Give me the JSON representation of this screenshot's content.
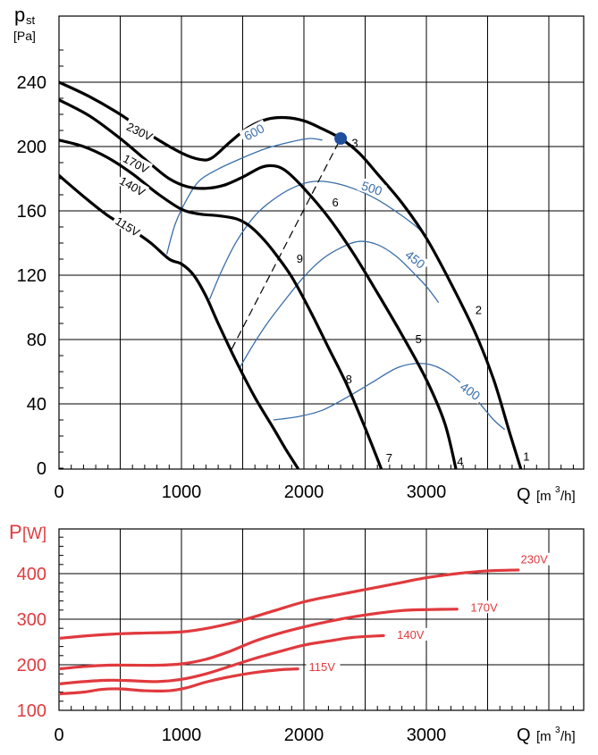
{
  "colors": {
    "black": "#000000",
    "blue": "#3a6ea8",
    "red": "#e03a3e",
    "marker": "#1f4e9c"
  },
  "chart_data": [
    {
      "type": "line",
      "title": "",
      "xlabel": "Q [m³/h]",
      "xlabel_main": "Q",
      "xlabel_unit_pre": "[m",
      "xlabel_unit_sup": "3",
      "xlabel_unit_post": "/h]",
      "ylabel_main": "p",
      "ylabel_sub": "st",
      "ylabel_unit": "[Pa]",
      "xlim": [
        0,
        4400
      ],
      "ylim": [
        0,
        240
      ],
      "x_ticks": [
        0,
        1000,
        2000,
        3000
      ],
      "x_tick_labels": [
        "0",
        "1000",
        "2000",
        "3000"
      ],
      "y_ticks": [
        0,
        40,
        80,
        120,
        160,
        200,
        240
      ],
      "y_tick_labels": [
        "0",
        "40",
        "80",
        "120",
        "160",
        "200",
        "240"
      ],
      "grid": true,
      "series": [
        {
          "name": "230V",
          "points": [
            [
              0,
              240
            ],
            [
              250,
              231
            ],
            [
              500,
              220
            ],
            [
              750,
              207
            ],
            [
              1000,
              196
            ],
            [
              1150,
              192
            ],
            [
              1250,
              193
            ],
            [
              1400,
              203
            ],
            [
              1550,
              212
            ],
            [
              1700,
              217
            ],
            [
              1850,
              218
            ],
            [
              2000,
              216
            ],
            [
              2150,
              211
            ],
            [
              2300,
              205
            ],
            [
              2450,
              196
            ],
            [
              2600,
              183
            ],
            [
              2800,
              165
            ],
            [
              3000,
              143
            ],
            [
              3200,
              115
            ],
            [
              3400,
              84
            ],
            [
              3550,
              55
            ],
            [
              3680,
              22
            ],
            [
              3770,
              0
            ]
          ]
        },
        {
          "name": "170V",
          "points": [
            [
              0,
              229
            ],
            [
              250,
              219
            ],
            [
              500,
              205
            ],
            [
              750,
              189
            ],
            [
              900,
              180
            ],
            [
              1050,
              175
            ],
            [
              1200,
              174
            ],
            [
              1350,
              176
            ],
            [
              1500,
              181
            ],
            [
              1650,
              187
            ],
            [
              1750,
              188
            ],
            [
              1850,
              185
            ],
            [
              2000,
              174
            ],
            [
              2200,
              156
            ],
            [
              2400,
              134
            ],
            [
              2600,
              109
            ],
            [
              2800,
              83
            ],
            [
              3000,
              55
            ],
            [
              3150,
              28
            ],
            [
              3240,
              0
            ]
          ]
        },
        {
          "name": "140V",
          "points": [
            [
              0,
              204
            ],
            [
              200,
              200
            ],
            [
              400,
              193
            ],
            [
              600,
              183
            ],
            [
              800,
              171
            ],
            [
              1000,
              161
            ],
            [
              1150,
              158
            ],
            [
              1300,
              157
            ],
            [
              1450,
              155
            ],
            [
              1550,
              151
            ],
            [
              1650,
              144
            ],
            [
              1750,
              135
            ],
            [
              1900,
              119
            ],
            [
              2050,
              98
            ],
            [
              2200,
              75
            ],
            [
              2350,
              52
            ],
            [
              2500,
              25
            ],
            [
              2630,
              0
            ]
          ]
        },
        {
          "name": "115V",
          "points": [
            [
              0,
              182
            ],
            [
              200,
              169
            ],
            [
              400,
              157
            ],
            [
              600,
              148
            ],
            [
              750,
              140
            ],
            [
              900,
              130
            ],
            [
              1000,
              127
            ],
            [
              1100,
              120
            ],
            [
              1200,
              107
            ],
            [
              1300,
              90
            ],
            [
              1450,
              66
            ],
            [
              1600,
              44
            ],
            [
              1750,
              25
            ],
            [
              1850,
              12
            ],
            [
              1950,
              0
            ]
          ]
        }
      ],
      "curve_labels": [
        {
          "text": "230V",
          "x": 650,
          "y": 208
        },
        {
          "text": "170V",
          "x": 620,
          "y": 188
        },
        {
          "text": "140V",
          "x": 590,
          "y": 174
        },
        {
          "text": "115V",
          "x": 550,
          "y": 149
        }
      ],
      "iso_lines": [
        {
          "label": "600",
          "points": [
            [
              880,
              133
            ],
            [
              950,
              152
            ],
            [
              1050,
              168
            ],
            [
              1150,
              179
            ],
            [
              1300,
              186
            ],
            [
              1500,
              193
            ],
            [
              1700,
              199
            ],
            [
              1900,
              203
            ],
            [
              2050,
              205
            ],
            [
              2150,
              204
            ]
          ],
          "label_pos": [
            1600,
            208
          ]
        },
        {
          "label": "500",
          "points": [
            [
              1230,
              105
            ],
            [
              1330,
              123
            ],
            [
              1450,
              141
            ],
            [
              1600,
              157
            ],
            [
              1750,
              167
            ],
            [
              1900,
              174
            ],
            [
              2050,
              178
            ],
            [
              2200,
              178
            ],
            [
              2400,
              174
            ],
            [
              2600,
              167
            ],
            [
              2800,
              157
            ],
            [
              2950,
              148
            ],
            [
              3000,
              142
            ]
          ],
          "label_pos": [
            2550,
            173
          ]
        },
        {
          "label": "450",
          "points": [
            [
              1480,
              63
            ],
            [
              1580,
              76
            ],
            [
              1700,
              90
            ],
            [
              1850,
              105
            ],
            [
              2000,
              119
            ],
            [
              2150,
              130
            ],
            [
              2300,
              137
            ],
            [
              2450,
              141
            ],
            [
              2600,
              139
            ],
            [
              2750,
              132
            ],
            [
              2900,
              121
            ],
            [
              3000,
              113
            ],
            [
              3100,
              103
            ]
          ],
          "label_pos": [
            2900,
            129
          ]
        },
        {
          "label": "400",
          "points": [
            [
              1750,
              30
            ],
            [
              1950,
              32
            ],
            [
              2150,
              36
            ],
            [
              2350,
              44
            ],
            [
              2550,
              53
            ],
            [
              2750,
              62
            ],
            [
              2900,
              65
            ],
            [
              3050,
              64
            ],
            [
              3200,
              58
            ],
            [
              3350,
              48
            ],
            [
              3450,
              39
            ],
            [
              3550,
              30
            ],
            [
              3640,
              24
            ]
          ],
          "label_pos": [
            3350,
            47
          ]
        }
      ],
      "system_line": {
        "points": [
          [
            1410,
            74
          ],
          [
            2300,
            205
          ]
        ],
        "style": "dashed"
      },
      "operating_point": {
        "x": 2300,
        "y": 205
      },
      "point_labels": [
        {
          "text": "1",
          "x": 3790,
          "y": 7
        },
        {
          "text": "2",
          "x": 3400,
          "y": 98
        },
        {
          "text": "3",
          "x": 2390,
          "y": 202
        },
        {
          "text": "4",
          "x": 3250,
          "y": 4
        },
        {
          "text": "5",
          "x": 2910,
          "y": 80
        },
        {
          "text": "6",
          "x": 2230,
          "y": 165
        },
        {
          "text": "7",
          "x": 2670,
          "y": 6
        },
        {
          "text": "8",
          "x": 2340,
          "y": 55
        },
        {
          "text": "9",
          "x": 1940,
          "y": 130
        }
      ]
    },
    {
      "type": "line",
      "title": "",
      "xlabel": "Q [m³/h]",
      "xlabel_main": "Q",
      "xlabel_unit_pre": "[m",
      "xlabel_unit_sup": "3",
      "xlabel_unit_post": "/h]",
      "ylabel_main": "P",
      "ylabel_unit": "[W]",
      "xlim": [
        0,
        4400
      ],
      "ylim": [
        100,
        500
      ],
      "x_ticks": [
        0,
        1000,
        2000,
        3000
      ],
      "x_tick_labels": [
        "0",
        "1000",
        "2000",
        "3000"
      ],
      "y_ticks": [
        100,
        200,
        300,
        400
      ],
      "y_tick_labels": [
        "100",
        "200",
        "300",
        "400"
      ],
      "grid": true,
      "series": [
        {
          "name": "230V",
          "points": [
            [
              0,
              258
            ],
            [
              250,
              264
            ],
            [
              500,
              268
            ],
            [
              750,
              270
            ],
            [
              1000,
              272
            ],
            [
              1250,
              282
            ],
            [
              1500,
              298
            ],
            [
              1750,
              318
            ],
            [
              2000,
              338
            ],
            [
              2250,
              352
            ],
            [
              2500,
              365
            ],
            [
              2750,
              378
            ],
            [
              3000,
              391
            ],
            [
              3250,
              400
            ],
            [
              3500,
              406
            ],
            [
              3750,
              408
            ]
          ]
        },
        {
          "name": "170V",
          "points": [
            [
              0,
              191
            ],
            [
              200,
              196
            ],
            [
              400,
              199
            ],
            [
              600,
              199
            ],
            [
              800,
              199
            ],
            [
              1000,
              202
            ],
            [
              1200,
              212
            ],
            [
              1400,
              230
            ],
            [
              1600,
              252
            ],
            [
              1800,
              269
            ],
            [
              2000,
              283
            ],
            [
              2200,
              295
            ],
            [
              2400,
              305
            ],
            [
              2600,
              313
            ],
            [
              2800,
              319
            ],
            [
              3000,
              321
            ],
            [
              3250,
              322
            ]
          ]
        },
        {
          "name": "140V",
          "points": [
            [
              0,
              158
            ],
            [
              200,
              163
            ],
            [
              400,
              166
            ],
            [
              600,
              165
            ],
            [
              800,
              163
            ],
            [
              1000,
              168
            ],
            [
              1200,
              180
            ],
            [
              1400,
              197
            ],
            [
              1600,
              214
            ],
            [
              1800,
              229
            ],
            [
              2000,
              243
            ],
            [
              2200,
              252
            ],
            [
              2400,
              260
            ],
            [
              2650,
              264
            ]
          ]
        },
        {
          "name": "115V",
          "points": [
            [
              0,
              136
            ],
            [
              200,
              140
            ],
            [
              350,
              146
            ],
            [
              500,
              147
            ],
            [
              700,
              143
            ],
            [
              900,
              143
            ],
            [
              1050,
              150
            ],
            [
              1200,
              162
            ],
            [
              1400,
              174
            ],
            [
              1600,
              183
            ],
            [
              1800,
              189
            ],
            [
              1950,
              191
            ]
          ]
        }
      ],
      "curve_labels": [
        {
          "text": "230V",
          "x": 3770,
          "y": 426
        },
        {
          "text": "170V",
          "x": 3360,
          "y": 321
        },
        {
          "text": "140V",
          "x": 2760,
          "y": 261
        },
        {
          "text": "115V",
          "x": 2040,
          "y": 190
        }
      ]
    }
  ]
}
